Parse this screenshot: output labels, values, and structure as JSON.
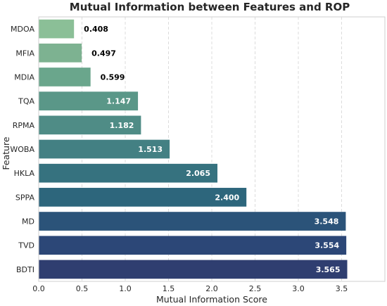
{
  "chart_data": {
    "type": "bar",
    "orientation": "horizontal",
    "title": "Mutual Information between Features and ROP",
    "xlabel": "Mutual Information Score",
    "ylabel": "Feature",
    "xlim": [
      0,
      4.0
    ],
    "xticks": [
      "0.0",
      "0.5",
      "1.0",
      "1.5",
      "2.0",
      "2.5",
      "3.0",
      "3.5"
    ],
    "grid": true,
    "categories": [
      "MDOA",
      "MFIA",
      "MDIA",
      "TQA",
      "RPMA",
      "WOBA",
      "HKLA",
      "SPPA",
      "MD",
      "TVD",
      "BDTI"
    ],
    "values": [
      0.408,
      0.497,
      0.599,
      1.147,
      1.182,
      1.513,
      2.065,
      2.4,
      3.548,
      3.554,
      3.565
    ],
    "value_labels": [
      "0.408",
      "0.497",
      "0.599",
      "1.147",
      "1.182",
      "1.513",
      "2.065",
      "2.400",
      "3.548",
      "3.554",
      "3.565"
    ],
    "colors": [
      "#8bbf97",
      "#7db291",
      "#6aa68c",
      "#5a9788",
      "#4f8c86",
      "#438083",
      "#36727f",
      "#2d667c",
      "#2b5379",
      "#2c4777",
      "#2f3e70"
    ],
    "label_colors": [
      "#000000",
      "#000000",
      "#000000",
      "#ffffff",
      "#ffffff",
      "#ffffff",
      "#ffffff",
      "#ffffff",
      "#ffffff",
      "#ffffff",
      "#ffffff"
    ],
    "label_inside": [
      false,
      false,
      false,
      true,
      true,
      true,
      true,
      true,
      true,
      true,
      true
    ]
  }
}
